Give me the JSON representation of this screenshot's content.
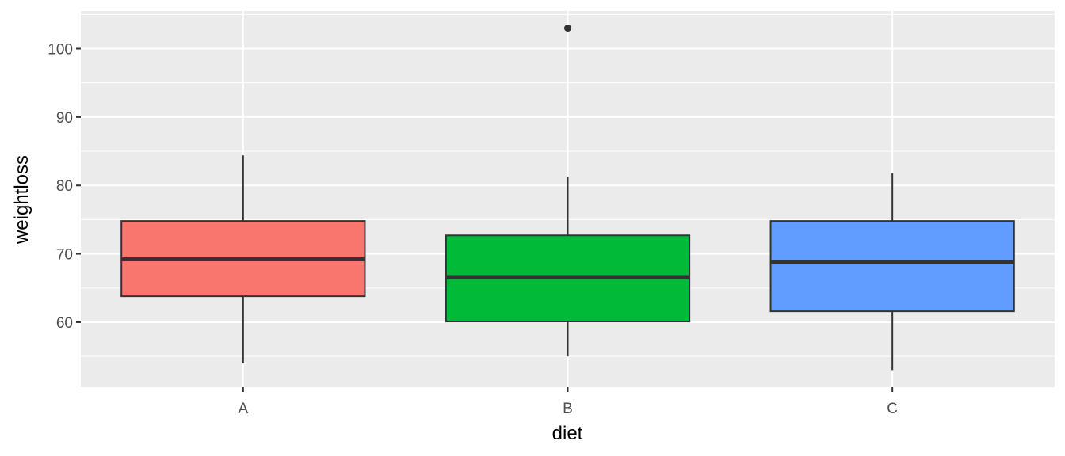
{
  "chart_data": {
    "type": "boxplot",
    "title": "",
    "xlabel": "diet",
    "ylabel": "weightloss",
    "ylim": [
      50.5,
      105.5
    ],
    "yticks": [
      60,
      70,
      80,
      90,
      100
    ],
    "grid": true,
    "legend": "none",
    "categories": [
      "A",
      "B",
      "C"
    ],
    "boxes": [
      {
        "category": "A",
        "whisker_low": 54.0,
        "q1": 63.8,
        "median": 69.2,
        "q3": 74.8,
        "whisker_high": 84.4,
        "outliers": [],
        "color": "#F8766D"
      },
      {
        "category": "B",
        "whisker_low": 55.0,
        "q1": 60.1,
        "median": 66.6,
        "q3": 72.7,
        "whisker_high": 81.3,
        "outliers": [
          103.0
        ],
        "color": "#00BA38"
      },
      {
        "category": "C",
        "whisker_low": 53.0,
        "q1": 61.6,
        "median": 68.8,
        "q3": 74.8,
        "whisker_high": 81.8,
        "outliers": [],
        "color": "#619CFF"
      }
    ]
  }
}
